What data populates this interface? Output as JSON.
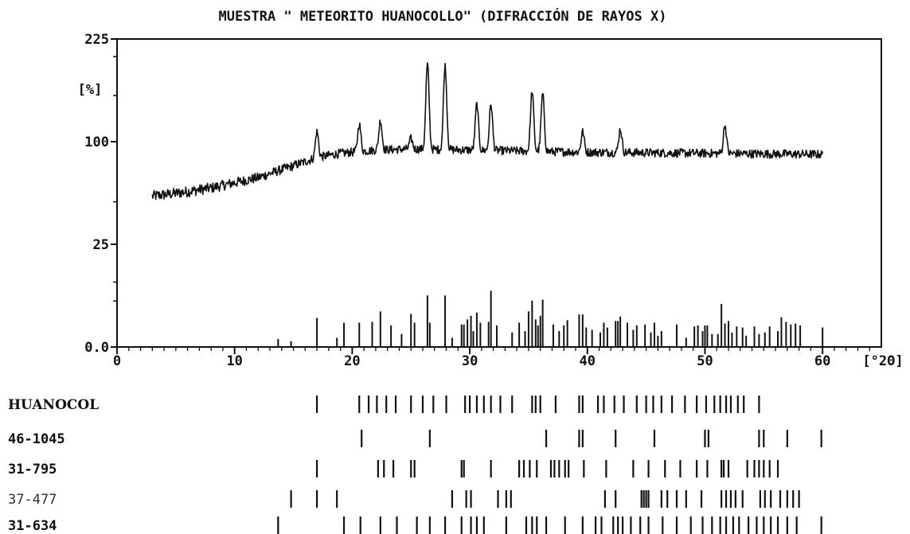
{
  "chart_data": {
    "type": "line",
    "title": "MUESTRA \" METEORITO HUANOCOLLO\" (DIFRACCIÓN DE RAYOS X)",
    "xlabel": "[°2Θ]",
    "ylabel": "[%]",
    "xlim": [
      0,
      65
    ],
    "x_ticks": [
      0,
      10,
      20,
      30,
      40,
      50,
      60
    ],
    "y_tick_labels": [
      {
        "label": "225",
        "value": 225
      },
      {
        "label": "100",
        "value": 100
      },
      {
        "label": "25",
        "value": 25
      },
      {
        "label": "0.0",
        "value": 0
      }
    ],
    "y_scale": "sqrt",
    "grid": false,
    "pattern_series": {
      "name": "diffractogram",
      "x_range": [
        3,
        60
      ],
      "baseline_points": [
        [
          3,
          54
        ],
        [
          5,
          56
        ],
        [
          8,
          60
        ],
        [
          12,
          68
        ],
        [
          15,
          78
        ],
        [
          17,
          85
        ],
        [
          19,
          89
        ],
        [
          22,
          92
        ],
        [
          25,
          93
        ],
        [
          30,
          92
        ],
        [
          40,
          90
        ],
        [
          50,
          89
        ],
        [
          60,
          88
        ]
      ],
      "peaks": [
        {
          "x": 17.0,
          "y": 110
        },
        {
          "x": 20.6,
          "y": 118
        },
        {
          "x": 22.4,
          "y": 122
        },
        {
          "x": 25.0,
          "y": 103
        },
        {
          "x": 26.4,
          "y": 190
        },
        {
          "x": 27.9,
          "y": 188
        },
        {
          "x": 30.6,
          "y": 140
        },
        {
          "x": 31.8,
          "y": 140
        },
        {
          "x": 35.3,
          "y": 155
        },
        {
          "x": 36.2,
          "y": 152
        },
        {
          "x": 39.6,
          "y": 110
        },
        {
          "x": 42.8,
          "y": 113
        },
        {
          "x": 51.7,
          "y": 117
        }
      ]
    },
    "stick_series": {
      "name": "reference lines",
      "points": [
        [
          13.7,
          0.15
        ],
        [
          14.8,
          0.08
        ],
        [
          17.0,
          2.0
        ],
        [
          18.7,
          0.2
        ],
        [
          19.3,
          1.4
        ],
        [
          20.6,
          1.4
        ],
        [
          21.7,
          1.5
        ],
        [
          22.4,
          3.0
        ],
        [
          23.3,
          1.1
        ],
        [
          24.2,
          0.4
        ],
        [
          25.0,
          2.6
        ],
        [
          25.3,
          1.4
        ],
        [
          26.4,
          6.3
        ],
        [
          26.6,
          1.4
        ],
        [
          27.9,
          6.3
        ],
        [
          28.5,
          0.2
        ],
        [
          29.3,
          1.2
        ],
        [
          29.5,
          1.2
        ],
        [
          29.8,
          1.8
        ],
        [
          30.1,
          2.3
        ],
        [
          30.3,
          0.6
        ],
        [
          30.6,
          2.8
        ],
        [
          30.9,
          1.4
        ],
        [
          31.6,
          1.5
        ],
        [
          31.8,
          7.5
        ],
        [
          32.3,
          1.1
        ],
        [
          33.6,
          0.5
        ],
        [
          34.2,
          1.4
        ],
        [
          34.7,
          0.6
        ],
        [
          35.0,
          3.0
        ],
        [
          35.3,
          5.1
        ],
        [
          35.6,
          1.8
        ],
        [
          35.8,
          1.1
        ],
        [
          36.0,
          2.3
        ],
        [
          36.2,
          5.3
        ],
        [
          37.1,
          1.2
        ],
        [
          37.6,
          0.6
        ],
        [
          38.0,
          1.1
        ],
        [
          38.3,
          1.7
        ],
        [
          39.3,
          2.5
        ],
        [
          39.6,
          2.5
        ],
        [
          39.9,
          0.9
        ],
        [
          40.4,
          0.7
        ],
        [
          41.1,
          0.5
        ],
        [
          41.4,
          1.4
        ],
        [
          41.7,
          0.9
        ],
        [
          42.4,
          1.6
        ],
        [
          42.6,
          1.6
        ],
        [
          42.8,
          2.2
        ],
        [
          43.4,
          1.4
        ],
        [
          43.9,
          0.7
        ],
        [
          44.2,
          1.1
        ],
        [
          44.9,
          1.2
        ],
        [
          45.4,
          0.5
        ],
        [
          45.7,
          1.4
        ],
        [
          46.0,
          0.3
        ],
        [
          46.3,
          0.6
        ],
        [
          47.6,
          1.2
        ],
        [
          48.4,
          0.2
        ],
        [
          49.1,
          1.0
        ],
        [
          49.4,
          1.1
        ],
        [
          49.8,
          0.6
        ],
        [
          50.0,
          1.1
        ],
        [
          50.2,
          1.1
        ],
        [
          50.6,
          0.4
        ],
        [
          51.1,
          0.4
        ],
        [
          51.4,
          4.4
        ],
        [
          51.7,
          1.3
        ],
        [
          52.0,
          1.6
        ],
        [
          52.3,
          0.5
        ],
        [
          52.7,
          1.0
        ],
        [
          53.2,
          0.9
        ],
        [
          53.5,
          0.3
        ],
        [
          54.2,
          1.0
        ],
        [
          54.6,
          0.4
        ],
        [
          55.1,
          0.5
        ],
        [
          55.5,
          1.0
        ],
        [
          56.2,
          0.6
        ],
        [
          56.5,
          2.1
        ],
        [
          56.9,
          1.5
        ],
        [
          57.3,
          1.2
        ],
        [
          57.7,
          1.3
        ],
        [
          58.1,
          1.1
        ],
        [
          60.0,
          0.9
        ]
      ]
    },
    "reference_rows": [
      {
        "label": "HUANOCOL",
        "lines": [
          17.0,
          20.6,
          21.4,
          22.1,
          22.9,
          23.7,
          25.0,
          26.0,
          26.9,
          28.0,
          29.6,
          30.0,
          30.6,
          31.2,
          31.8,
          32.6,
          33.6,
          35.3,
          35.6,
          36.0,
          37.3,
          39.3,
          39.6,
          40.9,
          41.4,
          42.3,
          43.1,
          44.2,
          45.0,
          45.6,
          46.3,
          47.2,
          48.3,
          49.3,
          50.1,
          50.8,
          51.3,
          51.8,
          52.2,
          52.8,
          53.3,
          54.6
        ]
      },
      {
        "label": "46-1045",
        "lines": [
          20.8,
          26.6,
          36.5,
          39.3,
          39.6,
          42.4,
          45.7,
          50.0,
          50.3,
          54.6,
          55.0,
          57.0,
          59.9
        ]
      },
      {
        "label": "31-795",
        "lines": [
          17.0,
          22.2,
          22.7,
          23.5,
          25.0,
          25.3,
          29.3,
          29.5,
          31.8,
          34.2,
          34.6,
          35.1,
          35.7,
          36.9,
          37.2,
          37.6,
          38.1,
          38.4,
          39.7,
          41.6,
          43.9,
          45.2,
          46.6,
          47.9,
          49.3,
          50.2,
          51.4,
          51.6,
          52.0,
          53.6,
          54.2,
          54.6,
          55.0,
          55.5,
          56.2
        ]
      },
      {
        "label": "37-477",
        "lines": [
          14.8,
          17.0,
          18.7,
          28.5,
          29.7,
          30.1,
          32.4,
          33.1,
          33.5,
          41.5,
          42.4,
          44.6,
          44.8,
          45.0,
          45.2,
          46.3,
          46.8,
          47.6,
          48.4,
          49.7,
          51.4,
          51.8,
          52.2,
          52.6,
          53.2,
          54.7,
          55.1,
          55.6,
          56.4,
          57.0,
          57.5,
          58.0
        ]
      },
      {
        "label": "31-634",
        "lines": [
          13.7,
          19.3,
          20.7,
          22.4,
          23.8,
          25.5,
          26.6,
          27.9,
          29.3,
          30.1,
          30.6,
          31.2,
          33.1,
          34.8,
          35.3,
          35.7,
          36.5,
          38.1,
          39.6,
          40.7,
          41.2,
          42.2,
          42.6,
          43.0,
          43.7,
          44.5,
          45.2,
          46.4,
          47.6,
          48.8,
          49.8,
          50.6,
          51.3,
          51.8,
          52.4,
          52.9,
          53.7,
          54.4,
          55.0,
          55.6,
          56.2,
          57.0,
          57.8,
          59.9
        ]
      }
    ]
  }
}
